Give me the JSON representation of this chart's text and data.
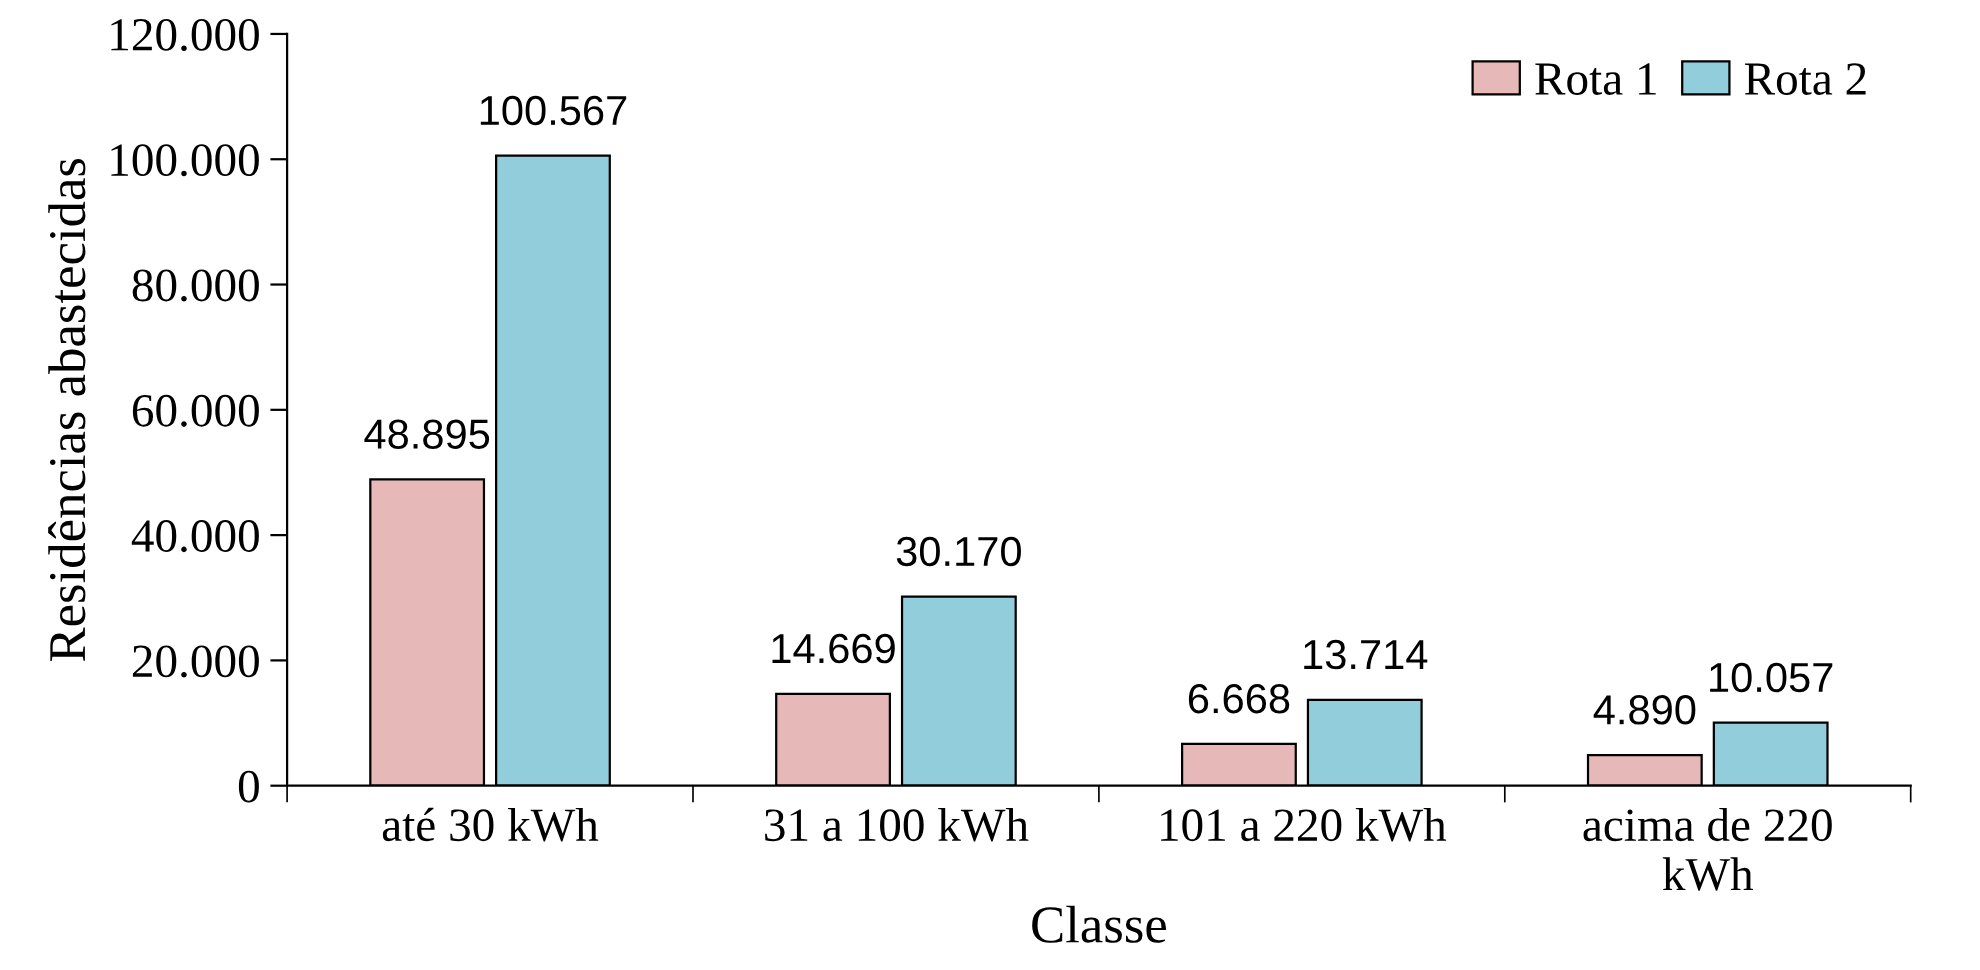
{
  "chart_data": {
    "type": "bar",
    "xlabel": "Classe",
    "ylabel": "Residências abastecidas",
    "categories": [
      "até 30 kWh",
      "31 a 100 kWh",
      "101 a 220 kWh",
      "acima de 220\nkWh"
    ],
    "series": [
      {
        "name": "Rota 1",
        "color": "#e6b8b7",
        "values": [
          48895,
          14669,
          6668,
          4890
        ],
        "value_labels": [
          "48.895",
          "14.669",
          "6.668",
          "4.890"
        ]
      },
      {
        "name": "Rota 2",
        "color": "#92cddc",
        "values": [
          100567,
          30170,
          13714,
          10057
        ],
        "value_labels": [
          "100.567",
          "30.170",
          "13.714",
          "10.057"
        ]
      }
    ],
    "ylim": [
      0,
      120000
    ],
    "yticks": [
      {
        "value": 0,
        "label": "0"
      },
      {
        "value": 20000,
        "label": "20.000"
      },
      {
        "value": 40000,
        "label": "40.000"
      },
      {
        "value": 60000,
        "label": "60.000"
      },
      {
        "value": 80000,
        "label": "80.000"
      },
      {
        "value": 100000,
        "label": "100.000"
      },
      {
        "value": 120000,
        "label": "120.000"
      }
    ],
    "legend": "top right",
    "grid": false
  }
}
